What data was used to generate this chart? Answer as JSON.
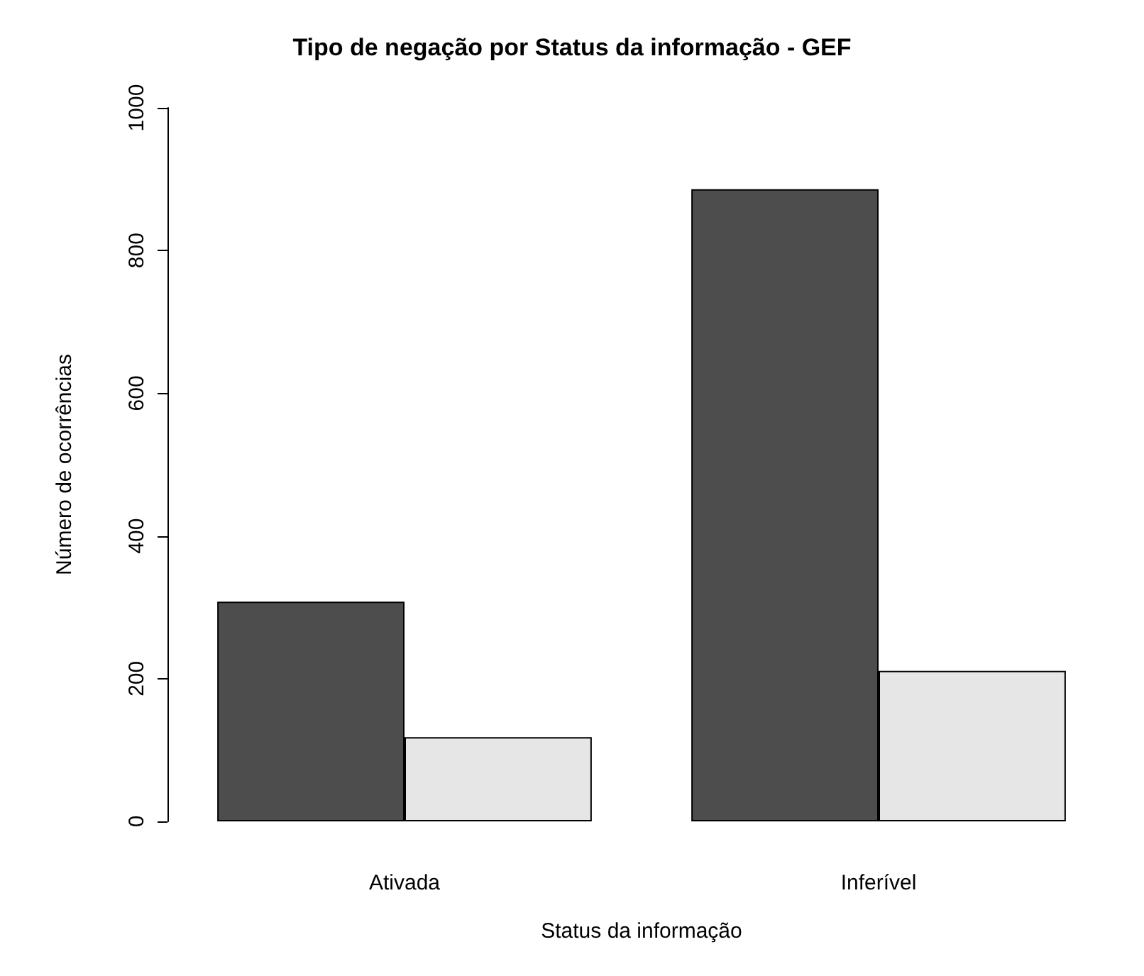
{
  "chart_data": {
    "type": "bar",
    "title": "Tipo de negação por Status da informação - GEF",
    "xlabel": "Status da informação",
    "ylabel": "Número de ocorrências",
    "categories": [
      "Ativada",
      "Inferível"
    ],
    "series": [
      {
        "color": "#4d4d4d",
        "values": [
          308,
          886
        ]
      },
      {
        "color": "#e6e6e6",
        "values": [
          118,
          211
        ]
      }
    ],
    "ylim": [
      0,
      1000
    ],
    "yticks": [
      0,
      200,
      400,
      600,
      800,
      1000
    ],
    "grid": false
  }
}
